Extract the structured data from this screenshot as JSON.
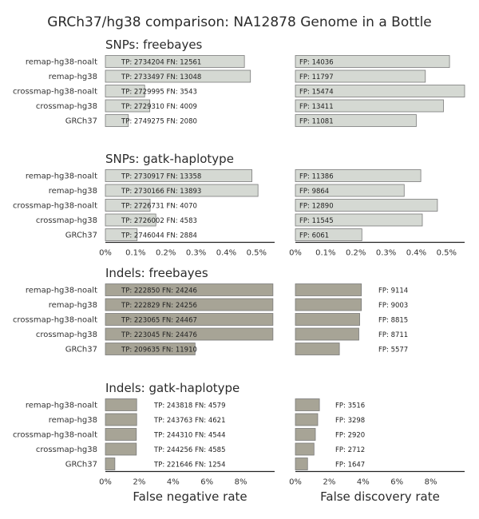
{
  "colors": {
    "snp_bar": "#d5d9d3",
    "indel_bar": "#a7a496",
    "bar_edge": "#7a7a7a",
    "axis": "#222222"
  },
  "chart_data": {
    "type": "bar",
    "orientation": "horizontal",
    "title": "GRCh37/hg38 comparison: NA12878 Genome in a Bottle",
    "xlabel_left": "False negative rate",
    "xlabel_right": "False discovery rate",
    "categories": [
      "remap-hg38-noalt",
      "remap-hg38",
      "crossmap-hg38-noalt",
      "crossmap-hg38",
      "GRCh37"
    ],
    "panels": [
      {
        "title": "SNPs: freebayes",
        "xlim": [
          0,
          0.56
        ],
        "xticks": [],
        "xtick_labels": [],
        "fnr": [
          0.46,
          0.48,
          0.13,
          0.147,
          0.076
        ],
        "fdr": [
          0.51,
          0.43,
          0.56,
          0.49,
          0.4
        ],
        "tp": [
          2734204,
          2733497,
          2729995,
          2729310,
          2749275
        ],
        "fn": [
          12561,
          13048,
          3543,
          4009,
          2080
        ],
        "fp": [
          14036,
          11797,
          15474,
          13411,
          11081
        ]
      },
      {
        "title": "SNPs: gatk-haplotype",
        "xlim": [
          0,
          0.56
        ],
        "xticks": [
          0,
          0.1,
          0.2,
          0.3,
          0.4,
          0.5
        ],
        "xtick_labels": [
          "0%",
          "0.1%",
          "0.2%",
          "0.3%",
          "0.4%",
          "0.5%"
        ],
        "fnr": [
          0.485,
          0.505,
          0.148,
          0.167,
          0.105
        ],
        "fdr": [
          0.415,
          0.36,
          0.47,
          0.42,
          0.22
        ],
        "tp": [
          2730917,
          2730166,
          2726731,
          2726002,
          2746044
        ],
        "fn": [
          13358,
          13893,
          4070,
          4583,
          2884
        ],
        "fp": [
          11386,
          9864,
          12890,
          11545,
          6061
        ]
      },
      {
        "title": "Indels: freebayes",
        "xlim": [
          0,
          10
        ],
        "xticks": [],
        "xtick_labels": [],
        "fnr": [
          9.9,
          9.9,
          9.9,
          9.9,
          5.3
        ],
        "fdr": [
          3.9,
          3.9,
          3.8,
          3.75,
          2.6
        ],
        "tp": [
          222850,
          222829,
          223065,
          223045,
          209635
        ],
        "fn": [
          24246,
          24256,
          24467,
          24476,
          11910
        ],
        "fp": [
          9114,
          9003,
          8815,
          8711,
          5577
        ]
      },
      {
        "title": "Indels: gatk-haplotype",
        "xlim": [
          0,
          10
        ],
        "xticks": [
          0,
          2,
          4,
          6,
          8
        ],
        "xtick_labels": [
          "0%",
          "2%",
          "4%",
          "6%",
          "8%"
        ],
        "fnr": [
          1.85,
          1.85,
          1.83,
          1.83,
          0.56
        ],
        "fdr": [
          1.42,
          1.32,
          1.18,
          1.1,
          0.72
        ],
        "tp": [
          243818,
          243763,
          244310,
          244256,
          221646
        ],
        "fn": [
          4579,
          4621,
          4544,
          4585,
          1254
        ],
        "fp": [
          3516,
          3298,
          2920,
          2712,
          1647
        ]
      }
    ]
  }
}
